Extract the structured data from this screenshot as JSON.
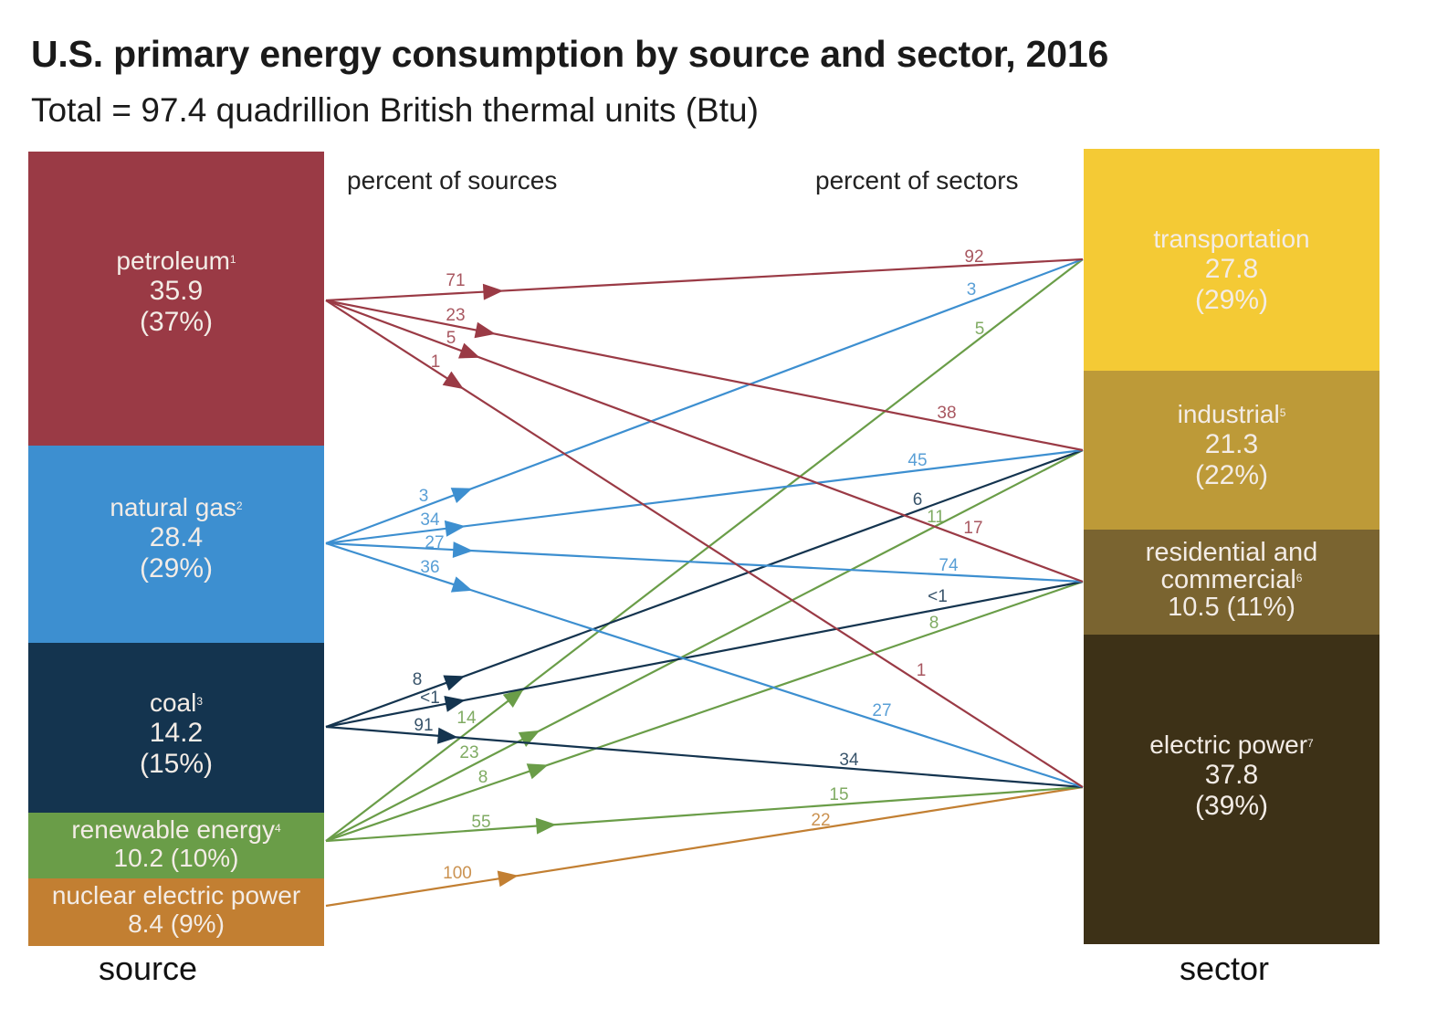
{
  "chart_data": {
    "type": "sankey",
    "title": "U.S. primary energy consumption by source and sector, 2016",
    "subtitle": "Total = 97.4 quadrillion British thermal units (Btu)",
    "left_heading": "percent of sources",
    "right_heading": "percent of sectors",
    "source_axis_label": "source",
    "sector_axis_label": "sector",
    "sources": [
      {
        "id": "petroleum",
        "name": "petroleum",
        "footnote": "1",
        "value": "35.9",
        "share": "(37%)",
        "quantity": 35.9,
        "color": "#9a3a45"
      },
      {
        "id": "natural_gas",
        "name": "natural gas",
        "footnote": "2",
        "value": "28.4",
        "share": "(29%)",
        "quantity": 28.4,
        "color": "#3d8fd0"
      },
      {
        "id": "coal",
        "name": "coal",
        "footnote": "3",
        "value": "14.2",
        "share": "(15%)",
        "quantity": 14.2,
        "color": "#14344f"
      },
      {
        "id": "renewable",
        "name": "renewable energy",
        "footnote": "4",
        "value": "10.2 (10%)",
        "share": "",
        "quantity": 10.2,
        "color": "#6a9d48"
      },
      {
        "id": "nuclear",
        "name": "nuclear electric power",
        "footnote": "",
        "value": "8.4 (9%)",
        "share": "",
        "quantity": 8.4,
        "color": "#c27f32"
      }
    ],
    "sectors": [
      {
        "id": "transportation",
        "name": "transportation",
        "footnote": "",
        "value": "27.8",
        "share": "(29%)",
        "quantity": 27.8,
        "color": "#f4ca35"
      },
      {
        "id": "industrial",
        "name": "industrial",
        "footnote": "5",
        "value": "21.3",
        "share": "(22%)",
        "quantity": 21.3,
        "color": "#bd9a38"
      },
      {
        "id": "residential_commercial",
        "name": "residential and commercial",
        "footnote": "6",
        "value": "10.5 (11%)",
        "share": "",
        "quantity": 10.5,
        "color": "#7a6430"
      },
      {
        "id": "electric_power",
        "name": "electric power",
        "footnote": "7",
        "value": "37.8",
        "share": "(39%)",
        "quantity": 37.8,
        "color": "#3d3117"
      }
    ],
    "flows": [
      {
        "source": "petroleum",
        "sector": "transportation",
        "pct_of_source": "71",
        "pct_of_sector": "92"
      },
      {
        "source": "petroleum",
        "sector": "industrial",
        "pct_of_source": "23",
        "pct_of_sector": "38"
      },
      {
        "source": "petroleum",
        "sector": "residential_commercial",
        "pct_of_source": "5",
        "pct_of_sector": "17"
      },
      {
        "source": "petroleum",
        "sector": "electric_power",
        "pct_of_source": "1",
        "pct_of_sector": "1"
      },
      {
        "source": "natural_gas",
        "sector": "transportation",
        "pct_of_source": "3",
        "pct_of_sector": "3"
      },
      {
        "source": "natural_gas",
        "sector": "industrial",
        "pct_of_source": "34",
        "pct_of_sector": "45"
      },
      {
        "source": "natural_gas",
        "sector": "residential_commercial",
        "pct_of_source": "27",
        "pct_of_sector": "74"
      },
      {
        "source": "natural_gas",
        "sector": "electric_power",
        "pct_of_source": "36",
        "pct_of_sector": "27"
      },
      {
        "source": "coal",
        "sector": "industrial",
        "pct_of_source": "8",
        "pct_of_sector": "6"
      },
      {
        "source": "coal",
        "sector": "residential_commercial",
        "pct_of_source": "<1",
        "pct_of_sector": "<1"
      },
      {
        "source": "coal",
        "sector": "electric_power",
        "pct_of_source": "91",
        "pct_of_sector": "34"
      },
      {
        "source": "renewable",
        "sector": "transportation",
        "pct_of_source": "14",
        "pct_of_sector": "5"
      },
      {
        "source": "renewable",
        "sector": "industrial",
        "pct_of_source": "23",
        "pct_of_sector": "11"
      },
      {
        "source": "renewable",
        "sector": "residential_commercial",
        "pct_of_source": "8",
        "pct_of_sector": "8"
      },
      {
        "source": "renewable",
        "sector": "electric_power",
        "pct_of_source": "55",
        "pct_of_sector": "15"
      },
      {
        "source": "nuclear",
        "sector": "electric_power",
        "pct_of_source": "100",
        "pct_of_sector": "22"
      }
    ]
  }
}
